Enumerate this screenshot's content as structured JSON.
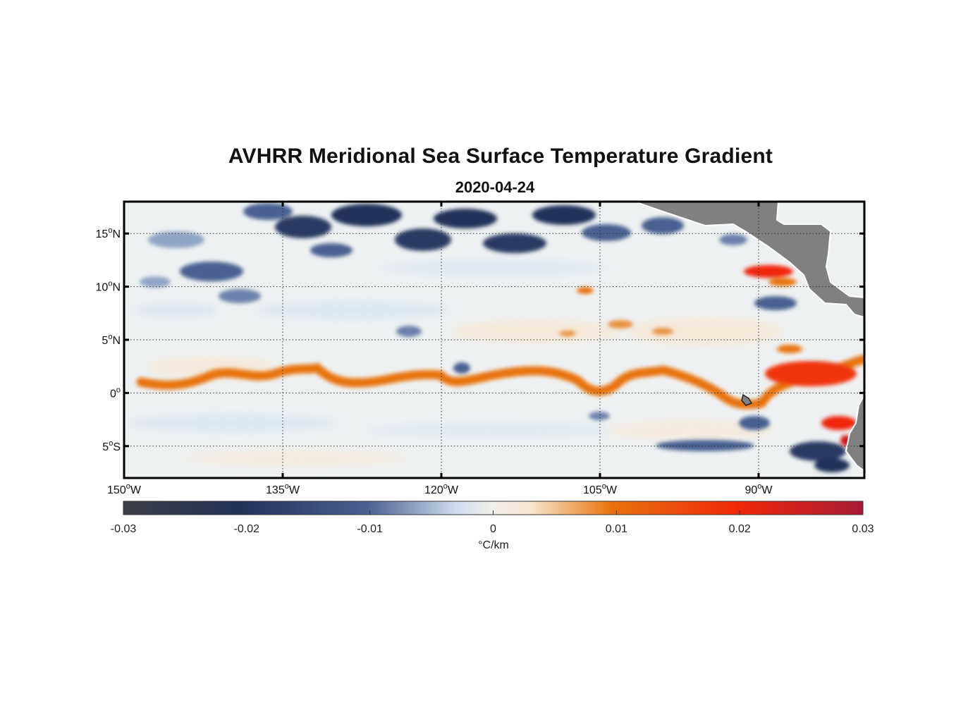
{
  "title": "AVHRR Meridional Sea Surface Temperature Gradient",
  "subtitle": "2020-04-24",
  "latitude_labels": [
    {
      "deg": "15",
      "hemi": "N",
      "lat": 15
    },
    {
      "deg": "10",
      "hemi": "N",
      "lat": 10
    },
    {
      "deg": "5",
      "hemi": "N",
      "lat": 5
    },
    {
      "deg": "0",
      "hemi": "",
      "lat": 0
    },
    {
      "deg": "5",
      "hemi": "S",
      "lat": -5
    }
  ],
  "longitude_labels": [
    {
      "deg": "150",
      "hemi": "W",
      "lon": -150
    },
    {
      "deg": "135",
      "hemi": "W",
      "lon": -135
    },
    {
      "deg": "120",
      "hemi": "W",
      "lon": -120
    },
    {
      "deg": "105",
      "hemi": "W",
      "lon": -105
    },
    {
      "deg": "90",
      "hemi": "W",
      "lon": -90
    }
  ],
  "colorbar": {
    "ticks": [
      "-0.03",
      "-0.02",
      "-0.01",
      "0",
      "0.01",
      "0.02",
      "0.03"
    ],
    "unit": "°C/km",
    "range": [
      -0.03,
      0.03
    ],
    "colors": [
      "#3a3e45",
      "#22335a",
      "#4a6190",
      "#cfdced",
      "#f2f0ea",
      "#f7e6cf",
      "#e8730d",
      "#f0280a",
      "#a81a35"
    ]
  },
  "map_extent": {
    "lon": [
      -150,
      -80
    ],
    "lat": [
      -8,
      18
    ]
  },
  "colors": {
    "land": "#808080",
    "frame": "#000000",
    "grid": "#333333"
  }
}
